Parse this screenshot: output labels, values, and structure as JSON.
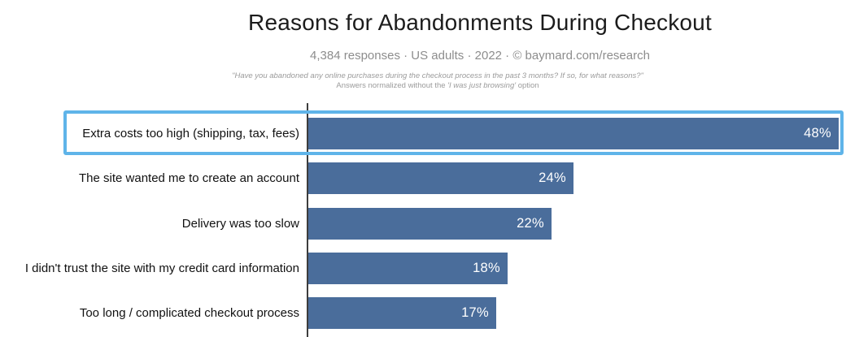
{
  "header": {
    "title": "Reasons for Abandonments During Checkout",
    "subtitle": "4,384 responses  ·  US adults  ·  2022  ·  ©  baymard.com/research",
    "question": "\"Have you abandoned any online purchases during the checkout process in the past 3 months? If so, for what reasons?\"",
    "note_prefix": "Answers normalized without the ",
    "note_italic": "'I was just browsing'",
    "note_suffix": " option"
  },
  "chart_data": {
    "type": "bar",
    "orientation": "horizontal",
    "title": "Reasons for Abandonments During Checkout",
    "categories": [
      "Extra costs too high (shipping, tax, fees)",
      "The site wanted me to create an account",
      "Delivery was too slow",
      "I didn't trust the site with my credit card information",
      "Too long / complicated checkout process"
    ],
    "values": [
      48,
      24,
      22,
      18,
      17
    ],
    "value_labels": [
      "48%",
      "24%",
      "22%",
      "18%",
      "17%"
    ],
    "xlim": [
      0,
      48
    ],
    "legend": "none",
    "grid": "off",
    "highlight": {
      "index": 0,
      "category": "Extra costs too high (shipping, tax, fees)",
      "style": "light-blue outline box around label and bar"
    },
    "colors": {
      "bar": "#4a6d9b",
      "bar_value_text": "#ffffff",
      "highlight_border": "#5fb4e9",
      "axis": "#3d3d3d",
      "title_text": "#1c1c1c",
      "subtitle_text": "#8d8d8d",
      "note_text": "#9b9b9b"
    }
  }
}
